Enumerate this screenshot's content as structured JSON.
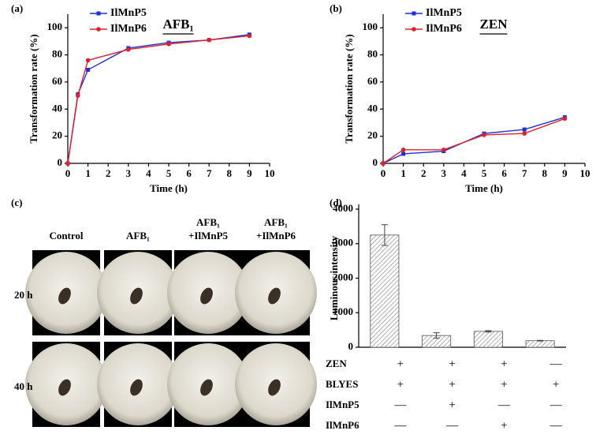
{
  "chart_data": [
    {
      "type": "line",
      "panel": "(a)",
      "title": "AFB₁",
      "x_label": "Time (h)",
      "y_label": "Transformation rate (%)",
      "x": [
        0,
        0.5,
        1,
        3,
        5,
        7,
        9
      ],
      "series": [
        {
          "name": "IlMnP5",
          "color": "#1f2fd6",
          "marker": "square",
          "values": [
            0,
            51,
            69,
            85,
            89,
            91,
            95
          ]
        },
        {
          "name": "IlMnP6",
          "color": "#e0202a",
          "marker": "circle",
          "values": [
            0,
            50,
            76,
            84,
            88,
            91,
            94
          ]
        }
      ],
      "xlim": [
        0,
        10
      ],
      "xticks": [
        0,
        1,
        2,
        3,
        4,
        5,
        6,
        7,
        8,
        9,
        10
      ],
      "ylim": [
        0,
        110
      ],
      "yticks": [
        0,
        20,
        40,
        60,
        80,
        100
      ],
      "legend": "upper left"
    },
    {
      "type": "line",
      "panel": "(b)",
      "title": "ZEN",
      "x_label": "Time (h)",
      "y_label": "Transformation rate (%)",
      "x": [
        0,
        1,
        3,
        5,
        7,
        9
      ],
      "series": [
        {
          "name": "IlMnP5",
          "color": "#1f2fd6",
          "marker": "square",
          "values": [
            0,
            7,
            9,
            22,
            25,
            34
          ]
        },
        {
          "name": "IlMnP6",
          "color": "#e0202a",
          "marker": "circle",
          "values": [
            0,
            10,
            10,
            21,
            22,
            33
          ]
        }
      ],
      "xlim": [
        0,
        10
      ],
      "xticks": [
        0,
        1,
        2,
        3,
        4,
        5,
        6,
        7,
        8,
        9,
        10
      ],
      "ylim": [
        0,
        110
      ],
      "yticks": [
        0,
        20,
        40,
        60,
        80,
        100
      ],
      "legend": "upper left"
    },
    {
      "type": "bar",
      "panel": "(d)",
      "y_label": "Luminous intensity",
      "categories": [
        null,
        null,
        null,
        null
      ],
      "values": [
        3250,
        340,
        460,
        190
      ],
      "errors": [
        300,
        80,
        20,
        10
      ],
      "color": "#7a7a7a",
      "ylim": [
        0,
        4000
      ],
      "yticks": [
        0,
        1000,
        2000,
        3000,
        4000
      ],
      "table": {
        "rows": [
          {
            "label": "ZEN",
            "cells": [
              "+",
              "+",
              "+",
              "—"
            ]
          },
          {
            "label": "BLYES",
            "cells": [
              "+",
              "+",
              "+",
              "+"
            ]
          },
          {
            "label": "IlMnP5",
            "cells": [
              "—",
              "+",
              "—",
              "—"
            ]
          },
          {
            "label": "IlMnP6",
            "cells": [
              "—",
              "—",
              "+",
              "—"
            ]
          }
        ]
      }
    }
  ],
  "photo_panel": {
    "panel": "(c)",
    "columns": [
      [
        "Control"
      ],
      [
        "AFB₁"
      ],
      [
        "AFB₁",
        "+IlMnP5"
      ],
      [
        "AFB₁",
        "+IlMnP6"
      ]
    ],
    "rows": [
      "20 h",
      "40 h"
    ]
  }
}
